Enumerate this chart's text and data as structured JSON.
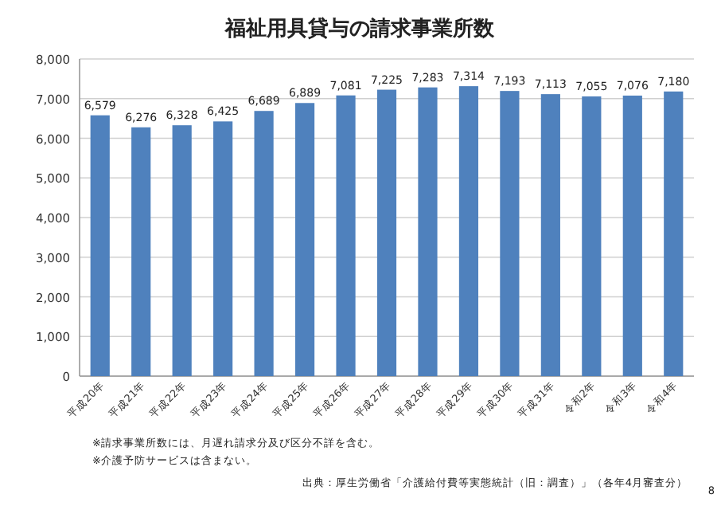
{
  "chart_data": {
    "type": "bar",
    "title": "福祉用具貸与の請求事業所数",
    "categories": [
      "平成20年",
      "平成21年",
      "平成22年",
      "平成23年",
      "平成24年",
      "平成25年",
      "平成26年",
      "平成27年",
      "平成28年",
      "平成29年",
      "平成30年",
      "平成31年",
      "令和2年",
      "令和3年",
      "令和4年"
    ],
    "values": [
      6579,
      6276,
      6328,
      6425,
      6689,
      6889,
      7081,
      7225,
      7283,
      7314,
      7193,
      7113,
      7055,
      7076,
      7180
    ],
    "value_labels": [
      "6,579",
      "6,276",
      "6,328",
      "6,425",
      "6,689",
      "6,889",
      "7,081",
      "7,225",
      "7,283",
      "7,314",
      "7,193",
      "7,113",
      "7,055",
      "7,076",
      "7,180"
    ],
    "color": "#4f81bd",
    "ylim": [
      0,
      8000
    ],
    "yticks": [
      0,
      {
        "value": 1000,
        "label": "1,000"
      },
      {
        "value": 2000,
        "label": "2,000"
      },
      {
        "value": 3000,
        "label": "3,000"
      },
      {
        "value": 4000,
        "label": "4,000"
      },
      {
        "value": 5000,
        "label": "5,000"
      },
      {
        "value": 6000,
        "label": "6,000"
      },
      {
        "value": 7000,
        "label": "7,000"
      },
      {
        "value": 8000,
        "label": "8,000"
      }
    ],
    "grid": "y",
    "annotations": [
      "※請求事業所数には、月遅れ請求分及び区分不詳を含む。",
      "※介護予防サービスは含まない。",
      "出典：厚生労働省「介護給付費等実態統計（旧：調査）」（各年4月審査分）",
      "8"
    ]
  }
}
